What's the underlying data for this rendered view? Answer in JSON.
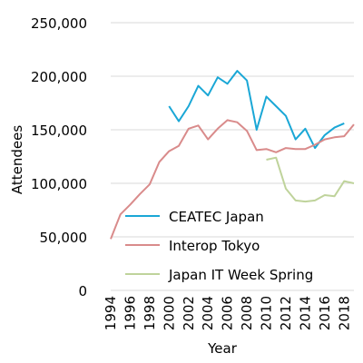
{
  "chart_data": {
    "type": "line",
    "title": "",
    "xlabel": "Year",
    "ylabel": "Attendees",
    "xlim": [
      1994,
      2019
    ],
    "ylim": [
      0,
      250000
    ],
    "grid": "horizontal",
    "legend": "bottom-right",
    "x_ticks": [
      1994,
      1996,
      1998,
      2000,
      2002,
      2004,
      2006,
      2008,
      2010,
      2012,
      2014,
      2016,
      2018
    ],
    "y_ticks": [
      0,
      50000,
      100000,
      150000,
      200000,
      250000
    ],
    "y_tick_labels": [
      "0",
      "50,000",
      "100,000",
      "150,000",
      "200,000",
      "250,000"
    ],
    "series": [
      {
        "name": "CEATEC Japan",
        "color": "#1aa7d6",
        "x": [
          2000,
          2001,
          2002,
          2003,
          2004,
          2005,
          2006,
          2007,
          2008,
          2009,
          2010,
          2011,
          2012,
          2013,
          2014,
          2015,
          2016,
          2017,
          2018
        ],
        "values": [
          172000,
          158000,
          172000,
          191000,
          182000,
          199000,
          193000,
          205000,
          196000,
          150000,
          181000,
          172000,
          163000,
          141000,
          151000,
          133000,
          145000,
          152000,
          156000
        ]
      },
      {
        "name": "Interop Tokyo",
        "color": "#d98b8b",
        "x": [
          1994,
          1995,
          1996,
          1997,
          1998,
          1999,
          2000,
          2001,
          2002,
          2003,
          2004,
          2005,
          2006,
          2007,
          2008,
          2009,
          2010,
          2011,
          2012,
          2013,
          2014,
          2015,
          2016,
          2017,
          2018,
          2019
        ],
        "values": [
          48000,
          71000,
          80000,
          90000,
          99000,
          120000,
          130000,
          135000,
          151000,
          154000,
          141000,
          151000,
          159000,
          157000,
          149000,
          131000,
          132000,
          129000,
          133000,
          132000,
          132000,
          136000,
          141000,
          143000,
          144000,
          155000
        ]
      },
      {
        "name": "Japan IT Week Spring",
        "color": "#bfd39b",
        "x": [
          2010,
          2011,
          2012,
          2013,
          2014,
          2015,
          2016,
          2017,
          2018,
          2019
        ],
        "values": [
          122000,
          124000,
          95000,
          84000,
          83000,
          84000,
          89000,
          88000,
          102000,
          100000
        ]
      }
    ]
  }
}
